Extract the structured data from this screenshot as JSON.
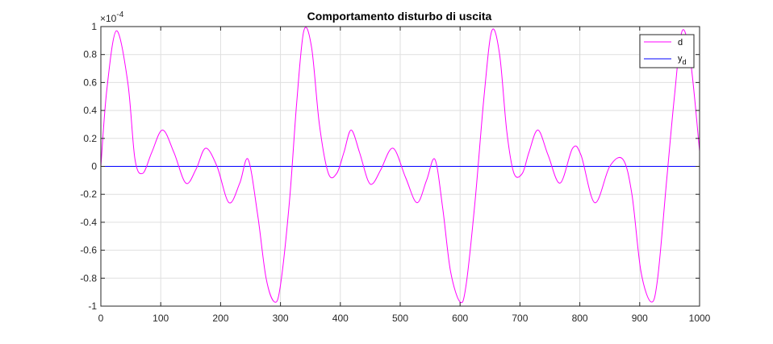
{
  "chart_data": {
    "type": "line",
    "title": "Comportamento disturbo di uscita",
    "xlabel": "",
    "ylabel": "",
    "xlim": [
      0,
      1000
    ],
    "ylim": [
      -1,
      1
    ],
    "y_exponent_label": "×10",
    "y_exponent_power": "-4",
    "x_ticks": [
      0,
      100,
      200,
      300,
      400,
      500,
      600,
      700,
      800,
      900,
      1000
    ],
    "x_tick_labels": [
      "0",
      "100",
      "200",
      "300",
      "400",
      "500",
      "600",
      "700",
      "800",
      "900",
      "1000"
    ],
    "y_ticks": [
      -1,
      -0.8,
      -0.6,
      -0.4,
      -0.2,
      0,
      0.2,
      0.4,
      0.6,
      0.8,
      1
    ],
    "y_tick_labels": [
      "-1",
      "-0.8",
      "-0.6",
      "-0.4",
      "-0.2",
      "0",
      "0.2",
      "0.4",
      "0.6",
      "0.8",
      "1"
    ],
    "grid": true,
    "legend_position": "top-right",
    "series": [
      {
        "name": "d",
        "color": "#ff00ff",
        "x": [
          0,
          10,
          26,
          45,
          57,
          70,
          85,
          103,
          122,
          142,
          159,
          175,
          194,
          214,
          232,
          246,
          262,
          276,
          290,
          300,
          315,
          327,
          339,
          352,
          365,
          380,
          394,
          406,
          418,
          432,
          446,
          455,
          468,
          488,
          509,
          528,
          544,
          558,
          571,
          584,
          600,
          610,
          625,
          640,
          653,
          666,
          678,
          690,
          704,
          715,
          730,
          747,
          767,
          788,
          802,
          825,
          850,
          872,
          887,
          902,
          919,
          930,
          945,
          958,
          971,
          985,
          1000
        ],
        "y": [
          0,
          0.55,
          0.97,
          0.6,
          0.05,
          -0.05,
          0.1,
          0.26,
          0.1,
          -0.12,
          -0.02,
          0.13,
          0.0,
          -0.26,
          -0.12,
          0.05,
          -0.35,
          -0.8,
          -0.97,
          -0.85,
          -0.25,
          0.45,
          0.97,
          0.85,
          0.3,
          -0.05,
          -0.05,
          0.1,
          0.26,
          0.1,
          -0.1,
          -0.12,
          -0.02,
          0.13,
          -0.08,
          -0.26,
          -0.1,
          0.05,
          -0.3,
          -0.75,
          -0.97,
          -0.85,
          -0.25,
          0.5,
          0.97,
          0.8,
          0.25,
          -0.05,
          -0.05,
          0.1,
          0.26,
          0.08,
          -0.12,
          0.13,
          0.08,
          -0.26,
          0.0,
          0.05,
          -0.2,
          -0.75,
          -0.97,
          -0.8,
          -0.1,
          0.5,
          0.97,
          0.75,
          0.11
        ]
      },
      {
        "name": "y",
        "name_subscript": "d",
        "color": "#0000ff",
        "x": [
          0,
          1000
        ],
        "y": [
          0,
          0
        ]
      }
    ]
  }
}
